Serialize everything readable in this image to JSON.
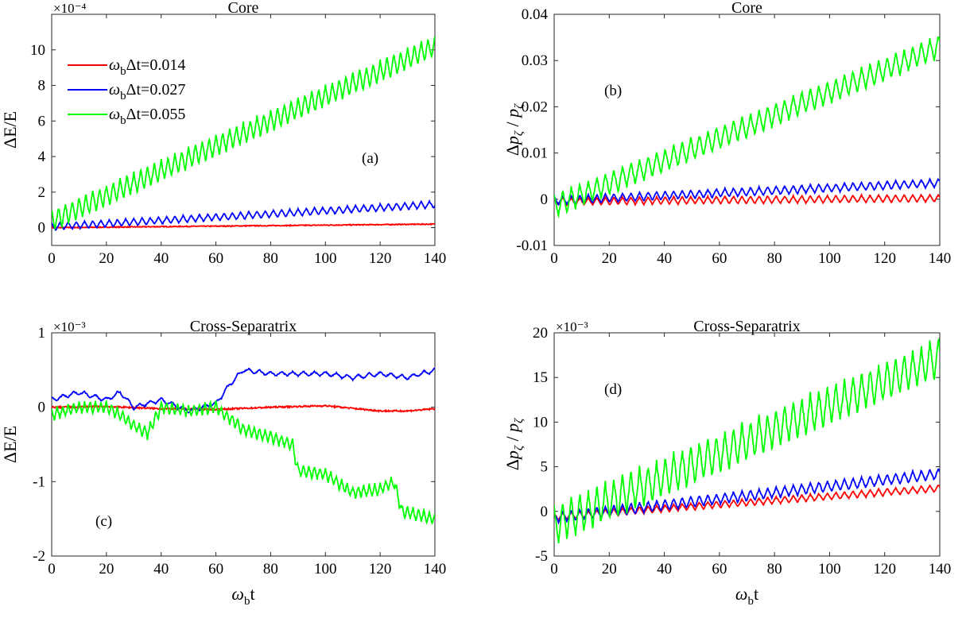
{
  "chart_data": [
    {
      "type": "line",
      "panel_label": "(a)",
      "title": "Core",
      "xlabel": "",
      "ylabel": "ΔE/E",
      "exponent": "×10⁻⁴",
      "xlim": [
        0,
        140
      ],
      "ylim": [
        -1,
        12
      ],
      "xticks": [
        "0",
        "20",
        "40",
        "60",
        "80",
        "100",
        "120",
        "140"
      ],
      "yticks": [
        "0",
        "2",
        "4",
        "6",
        "8",
        "10"
      ],
      "legend": {
        "position": "top-left",
        "entries": [
          {
            "pre": "ω",
            "sub": "b",
            "post": "Δt=0.014"
          },
          {
            "pre": "ω",
            "sub": "b",
            "post": "Δt=0.027"
          },
          {
            "pre": "ω",
            "sub": "b",
            "post": "Δt=0.055"
          }
        ]
      },
      "series": [
        {
          "name": "ωbΔt=0.014",
          "color": "#ff0000",
          "x": [
            0,
            140
          ],
          "y": [
            0,
            0.2
          ],
          "osc_amp": 0.05,
          "period": 0
        },
        {
          "name": "ωbΔt=0.027",
          "color": "#0000ff",
          "x": [
            0,
            140
          ],
          "y": [
            0.05,
            1.3
          ],
          "osc_amp": 0.2,
          "period": 3
        },
        {
          "name": "ωbΔt=0.055",
          "color": "#00ff00",
          "x": [
            0,
            140
          ],
          "y": [
            0.4,
            10.2
          ],
          "osc_amp": 0.6,
          "period": 2.5
        }
      ]
    },
    {
      "type": "line",
      "panel_label": "(b)",
      "title": "Core",
      "xlabel": "",
      "ylabel": "Δp_ζ / p_ζ",
      "exponent": "",
      "xlim": [
        0,
        140
      ],
      "ylim": [
        -0.01,
        0.04
      ],
      "xticks": [
        "0",
        "20",
        "40",
        "60",
        "80",
        "100",
        "120",
        "140"
      ],
      "yticks": [
        "-0.01",
        "0",
        "0.01",
        "0.02",
        "0.03",
        "0.04"
      ],
      "series": [
        {
          "color": "#ff0000",
          "x": [
            0,
            140
          ],
          "y": [
            -0.0005,
            0.0002
          ],
          "osc_amp": 0.0008,
          "period": 3.1
        },
        {
          "color": "#0000ff",
          "x": [
            0,
            140
          ],
          "y": [
            -0.0003,
            0.0035
          ],
          "osc_amp": 0.0009,
          "period": 3.1
        },
        {
          "color": "#00ff00",
          "x": [
            0,
            140
          ],
          "y": [
            -0.0015,
            0.033
          ],
          "osc_amp": 0.0025,
          "period": 3.1
        }
      ]
    },
    {
      "type": "line",
      "panel_label": "(c)",
      "title": "Cross-Separatrix",
      "xlabel": "ω_b t",
      "ylabel": "ΔE/E",
      "exponent": "×10⁻³",
      "xlim": [
        0,
        140
      ],
      "ylim": [
        -2,
        1
      ],
      "xticks": [
        "0",
        "20",
        "40",
        "60",
        "80",
        "100",
        "120",
        "140"
      ],
      "yticks": [
        "-2",
        "-1",
        "0",
        "1"
      ],
      "series": [
        {
          "color": "#ff0000",
          "x": [
            0,
            20,
            40,
            60,
            80,
            100,
            120,
            130,
            140
          ],
          "y": [
            0,
            0.01,
            -0.02,
            -0.03,
            0,
            0.02,
            -0.05,
            -0.05,
            -0.02
          ],
          "osc_amp": 0.02,
          "period": 0
        },
        {
          "color": "#0000ff",
          "x": [
            0,
            10,
            20,
            25,
            30,
            40,
            50,
            55,
            60,
            65,
            70,
            80,
            90,
            100,
            110,
            120,
            130,
            140
          ],
          "y": [
            0.1,
            0.2,
            0.1,
            0.2,
            0,
            0.1,
            -0.05,
            0,
            0.05,
            0.3,
            0.5,
            0.45,
            0.45,
            0.45,
            0.4,
            0.45,
            0.4,
            0.5
          ],
          "osc_amp": 0.06,
          "period": 4
        },
        {
          "color": "#00ff00",
          "x": [
            0,
            10,
            20,
            25,
            30,
            35,
            40,
            50,
            60,
            70,
            80,
            88,
            90,
            100,
            110,
            120,
            125,
            128,
            140
          ],
          "y": [
            -0.1,
            0,
            0,
            -0.1,
            -0.25,
            -0.35,
            0,
            -0.05,
            0,
            -0.3,
            -0.4,
            -0.5,
            -0.85,
            -0.9,
            -1.15,
            -1.1,
            -1.0,
            -1.4,
            -1.5
          ],
          "osc_amp": 0.15,
          "period": 2
        }
      ]
    },
    {
      "type": "line",
      "panel_label": "(d)",
      "title": "Cross-Separatrix",
      "xlabel": "ω_b t",
      "ylabel": "Δp_ζ / p_ζ",
      "exponent": "×10⁻³",
      "xlim": [
        0,
        140
      ],
      "ylim": [
        -5,
        20
      ],
      "xticks": [
        "0",
        "20",
        "40",
        "60",
        "80",
        "100",
        "120",
        "140"
      ],
      "yticks": [
        "-5",
        "0",
        "5",
        "10",
        "15",
        "20"
      ],
      "series": [
        {
          "color": "#ff0000",
          "x": [
            0,
            140
          ],
          "y": [
            -0.6,
            2.6
          ],
          "osc_amp": 0.4,
          "period": 3.1
        },
        {
          "color": "#0000ff",
          "x": [
            0,
            140
          ],
          "y": [
            -0.7,
            4.2
          ],
          "osc_amp": 0.6,
          "period": 3.1
        },
        {
          "color": "#00ff00",
          "x": [
            0,
            140
          ],
          "y": [
            -1.5,
            17.2
          ],
          "osc_amp": 2.2,
          "period": 3.1
        }
      ]
    }
  ]
}
